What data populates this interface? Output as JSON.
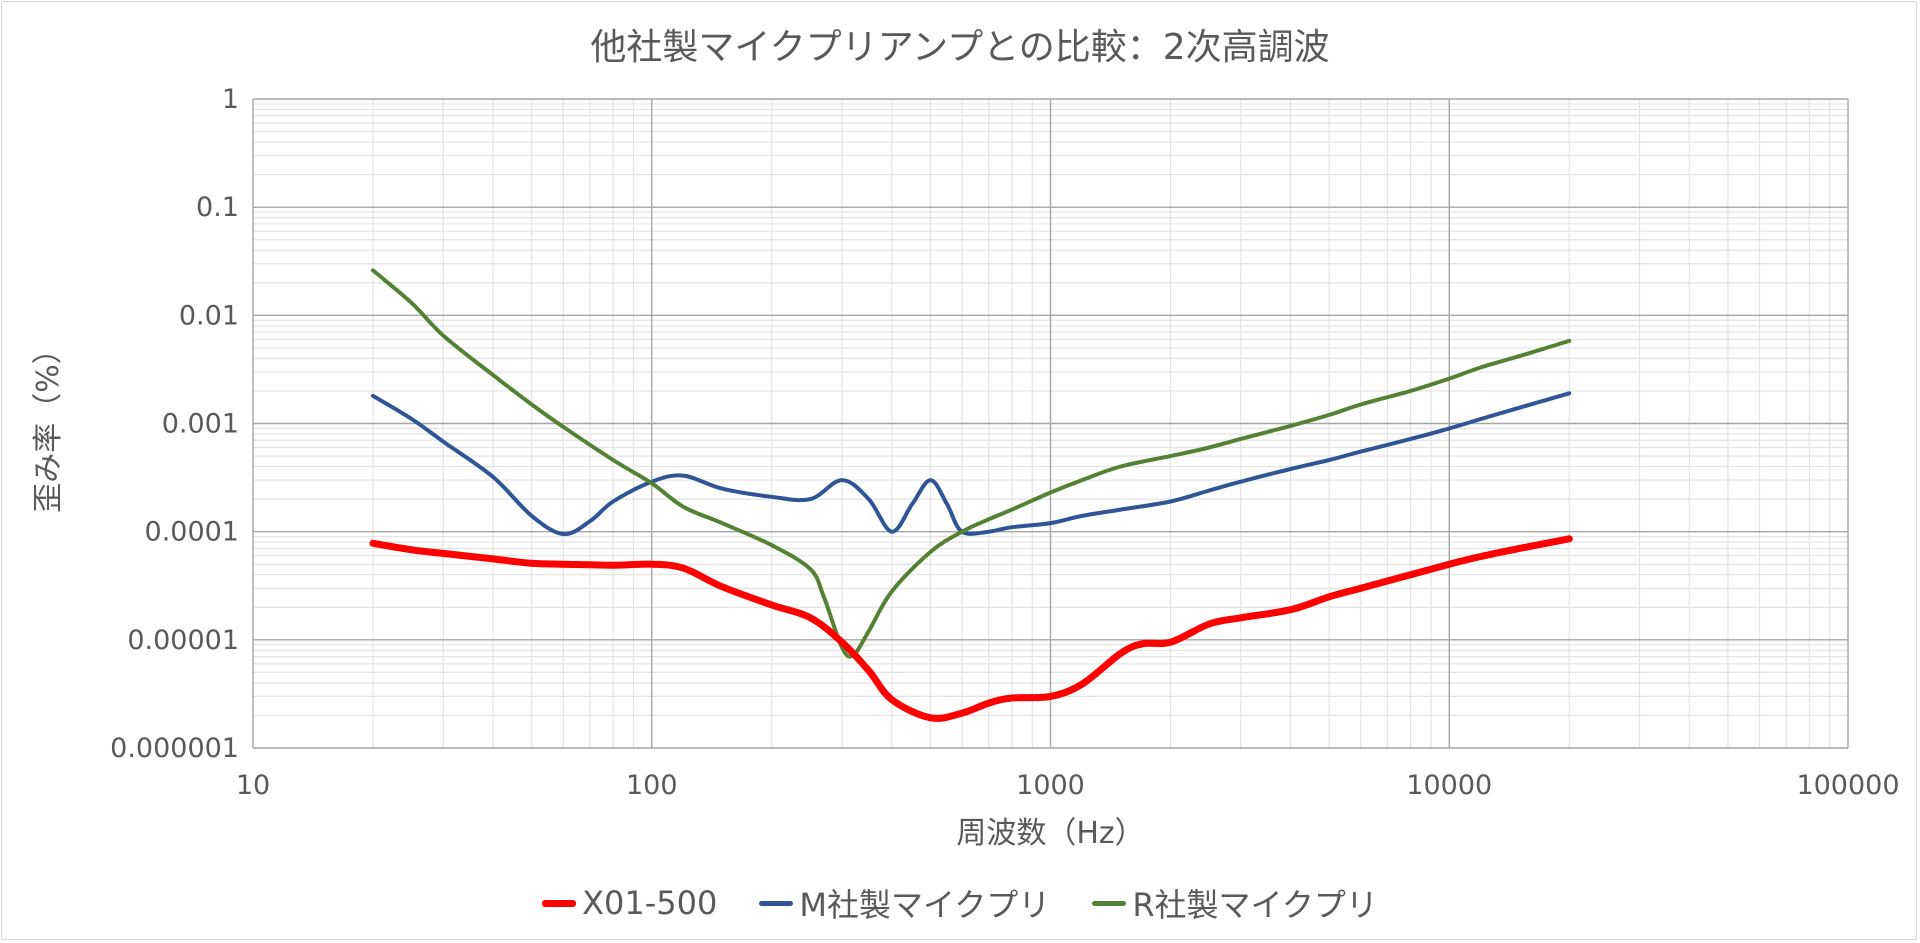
{
  "chart_data": {
    "type": "line",
    "title": "他社製マイクプリアンプとの比較：2次高調波",
    "xlabel": "周波数（Hz）",
    "ylabel": "歪み率（%）",
    "x_scale": "log",
    "y_scale": "log",
    "xlim": [
      10,
      100000
    ],
    "ylim": [
      1e-06,
      1
    ],
    "x_ticks": [
      "10",
      "100",
      "1000",
      "10000",
      "100000"
    ],
    "y_ticks": [
      "1",
      "0.1",
      "0.01",
      "0.001",
      "0.0001",
      "0.00001",
      "0.000001"
    ],
    "grid": true,
    "legend_position": "bottom",
    "series": [
      {
        "name": "X01-500",
        "color": "#ff0000",
        "width": 7,
        "x": [
          20,
          25,
          30,
          40,
          50,
          60,
          80,
          100,
          120,
          150,
          200,
          250,
          300,
          350,
          400,
          500,
          600,
          700,
          800,
          1000,
          1200,
          1500,
          1700,
          2000,
          2500,
          3000,
          4000,
          5000,
          6000,
          8000,
          10000,
          12000,
          15000,
          20000
        ],
        "y": [
          7.8e-05,
          6.8e-05,
          6.3e-05,
          5.6e-05,
          5.1e-05,
          5e-05,
          4.9e-05,
          5e-05,
          4.6e-05,
          3.1e-05,
          2.1e-05,
          1.6e-05,
          9.5e-06,
          5.2e-06,
          2.8e-06,
          1.9e-06,
          2.1e-06,
          2.6e-06,
          2.9e-06,
          3e-06,
          3.9e-06,
          7.5e-06,
          9.2e-06,
          9.5e-06,
          1.4e-05,
          1.6e-05,
          1.9e-05,
          2.5e-05,
          3e-05,
          4e-05,
          5e-05,
          5.9e-05,
          7e-05,
          8.6e-05
        ]
      },
      {
        "name": "M社製マイクプリ",
        "color": "#2f5597",
        "width": 4,
        "x": [
          20,
          25,
          30,
          40,
          50,
          60,
          70,
          80,
          100,
          120,
          150,
          200,
          250,
          300,
          350,
          400,
          450,
          500,
          550,
          600,
          700,
          800,
          1000,
          1200,
          1500,
          2000,
          2500,
          3000,
          4000,
          5000,
          6000,
          8000,
          10000,
          12000,
          15000,
          20000
        ],
        "y": [
          0.0018,
          0.0011,
          0.00068,
          0.00032,
          0.00014,
          9.5e-05,
          0.000125,
          0.00019,
          0.00029,
          0.00033,
          0.00025,
          0.00021,
          0.0002,
          0.0003,
          0.0002,
          0.0001,
          0.00018,
          0.0003,
          0.00018,
          0.0001,
          0.0001,
          0.00011,
          0.00012,
          0.00014,
          0.00016,
          0.00019,
          0.00024,
          0.00029,
          0.00038,
          0.00046,
          0.00055,
          0.00072,
          0.0009,
          0.0011,
          0.0014,
          0.0019
        ]
      },
      {
        "name": "R社製マイクプリ",
        "color": "#548235",
        "width": 4,
        "x": [
          20,
          25,
          30,
          40,
          50,
          60,
          80,
          100,
          120,
          150,
          200,
          250,
          270,
          300,
          320,
          350,
          400,
          500,
          600,
          700,
          800,
          1000,
          1200,
          1500,
          2000,
          2500,
          3000,
          4000,
          5000,
          6000,
          8000,
          10000,
          12000,
          15000,
          20000
        ],
        "y": [
          0.026,
          0.013,
          0.0065,
          0.0028,
          0.0015,
          0.00093,
          0.00046,
          0.00028,
          0.00017,
          0.00012,
          7.5e-05,
          4.5e-05,
          2.5e-05,
          8.5e-06,
          7.2e-06,
          1.2e-05,
          2.8e-05,
          6.5e-05,
          0.0001,
          0.00013,
          0.00016,
          0.00023,
          0.0003,
          0.0004,
          0.0005,
          0.0006,
          0.00072,
          0.00095,
          0.0012,
          0.0015,
          0.002,
          0.0026,
          0.0033,
          0.0042,
          0.0058
        ]
      }
    ]
  }
}
